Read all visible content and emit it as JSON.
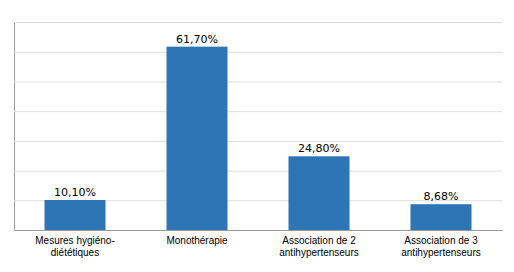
{
  "chart_data": {
    "type": "bar",
    "categories": [
      "Mesures hygiéno-\ndiététiques",
      "Monothérapie",
      "Association de 2\nantihypertenseurs",
      "Association de 3\nantihypertenseurs"
    ],
    "values": [
      10.1,
      61.7,
      24.8,
      8.68
    ],
    "value_labels": [
      "10,10%",
      "61,70%",
      "24,80%",
      "8,68%"
    ],
    "data_labels": true,
    "color": "#2E75B6",
    "ylim": [
      0,
      70
    ],
    "yticks": [
      0,
      10,
      20,
      30,
      40,
      50,
      60,
      70
    ],
    "grid": true,
    "tick_labels": "x"
  }
}
